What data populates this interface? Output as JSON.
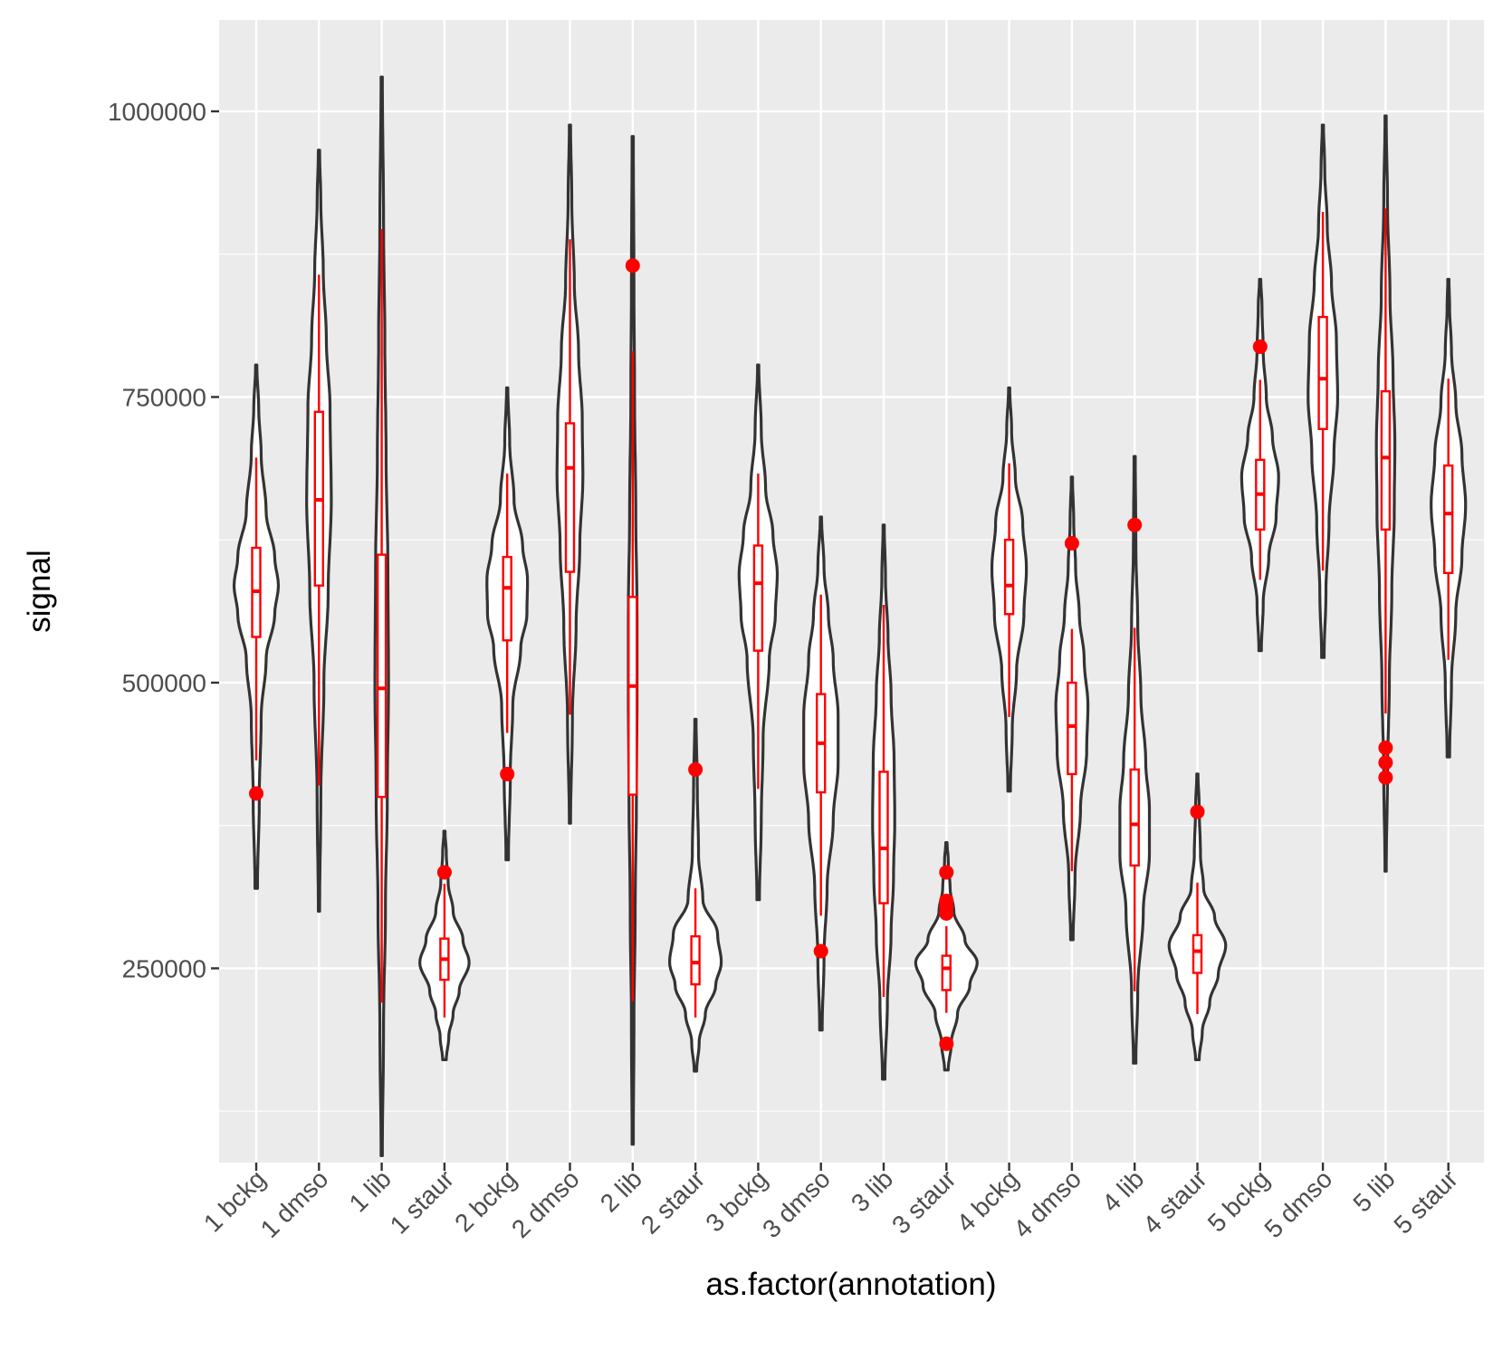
{
  "chart_data": {
    "type": "violin",
    "xlabel": "as.factor(annotation)",
    "ylabel": "signal",
    "ylim": [
      80000,
      1080000
    ],
    "yticks": [
      250000,
      500000,
      750000,
      1000000
    ],
    "ytick_labels": [
      "250000",
      "500000",
      "750000",
      "1000000"
    ],
    "grid": true,
    "legend": "none",
    "colors": {
      "panel_bg": "#ebebeb",
      "grid": "#ffffff",
      "violin_outline": "#333333",
      "violin_fill": "#ffffff",
      "box": "#ff0000",
      "outlier": "#ff0000"
    },
    "categories": [
      {
        "label": "1 bckg",
        "min": 320000,
        "max": 778000,
        "q1": 540000,
        "median": 580000,
        "q3": 618000,
        "wlo": 432000,
        "whi": 697000,
        "outliers": [
          403000
        ],
        "width_profile": [
          [
            320000,
            0.02
          ],
          [
            400000,
            0.05
          ],
          [
            470000,
            0.08
          ],
          [
            520000,
            0.16
          ],
          [
            560000,
            0.3
          ],
          [
            585000,
            0.36
          ],
          [
            610000,
            0.3
          ],
          [
            650000,
            0.16
          ],
          [
            700000,
            0.08
          ],
          [
            740000,
            0.04
          ],
          [
            778000,
            0.01
          ]
        ]
      },
      {
        "label": "1 dmso",
        "min": 300000,
        "max": 966000,
        "q1": 585000,
        "median": 660000,
        "q3": 737000,
        "wlo": 410000,
        "whi": 857000,
        "outliers": [],
        "width_profile": [
          [
            300000,
            0.01
          ],
          [
            400000,
            0.03
          ],
          [
            500000,
            0.08
          ],
          [
            580000,
            0.15
          ],
          [
            660000,
            0.2
          ],
          [
            740000,
            0.18
          ],
          [
            800000,
            0.12
          ],
          [
            860000,
            0.07
          ],
          [
            920000,
            0.03
          ],
          [
            966000,
            0.01
          ]
        ]
      },
      {
        "label": "1 lib",
        "min": 86000,
        "max": 1030000,
        "q1": 400000,
        "median": 495000,
        "q3": 612000,
        "wlo": 220000,
        "whi": 897000,
        "outliers": [],
        "width_profile": [
          [
            86000,
            0.01
          ],
          [
            200000,
            0.03
          ],
          [
            300000,
            0.06
          ],
          [
            400000,
            0.09
          ],
          [
            500000,
            0.11
          ],
          [
            600000,
            0.1
          ],
          [
            700000,
            0.07
          ],
          [
            800000,
            0.05
          ],
          [
            900000,
            0.03
          ],
          [
            1030000,
            0.01
          ]
        ]
      },
      {
        "label": "1 staur",
        "min": 170000,
        "max": 370000,
        "q1": 240000,
        "median": 258000,
        "q3": 276000,
        "wlo": 207000,
        "whi": 324000,
        "outliers": [
          334000
        ],
        "width_profile": [
          [
            170000,
            0.03
          ],
          [
            190000,
            0.07
          ],
          [
            210000,
            0.14
          ],
          [
            230000,
            0.24
          ],
          [
            255000,
            0.4
          ],
          [
            275000,
            0.3
          ],
          [
            300000,
            0.14
          ],
          [
            325000,
            0.06
          ],
          [
            350000,
            0.03
          ],
          [
            370000,
            0.01
          ]
        ]
      },
      {
        "label": "2 bckg",
        "min": 345000,
        "max": 758000,
        "q1": 537000,
        "median": 583000,
        "q3": 610000,
        "wlo": 456000,
        "whi": 683000,
        "outliers": [
          420000
        ],
        "width_profile": [
          [
            345000,
            0.02
          ],
          [
            420000,
            0.05
          ],
          [
            480000,
            0.09
          ],
          [
            530000,
            0.22
          ],
          [
            560000,
            0.32
          ],
          [
            590000,
            0.33
          ],
          [
            620000,
            0.25
          ],
          [
            660000,
            0.11
          ],
          [
            710000,
            0.04
          ],
          [
            758000,
            0.01
          ]
        ]
      },
      {
        "label": "2 dmso",
        "min": 377000,
        "max": 988000,
        "q1": 597000,
        "median": 688000,
        "q3": 727000,
        "wlo": 472000,
        "whi": 888000,
        "outliers": [],
        "width_profile": [
          [
            377000,
            0.01
          ],
          [
            470000,
            0.04
          ],
          [
            550000,
            0.1
          ],
          [
            620000,
            0.16
          ],
          [
            680000,
            0.21
          ],
          [
            730000,
            0.2
          ],
          [
            790000,
            0.14
          ],
          [
            850000,
            0.07
          ],
          [
            920000,
            0.03
          ],
          [
            988000,
            0.01
          ]
        ]
      },
      {
        "label": "2 lib",
        "min": 96000,
        "max": 978000,
        "q1": 402000,
        "median": 497000,
        "q3": 575000,
        "wlo": 221000,
        "whi": 790000,
        "outliers": [
          865000
        ],
        "width_profile": [
          [
            96000,
            0.01
          ],
          [
            200000,
            0.02
          ],
          [
            300000,
            0.04
          ],
          [
            400000,
            0.06
          ],
          [
            480000,
            0.07
          ],
          [
            560000,
            0.07
          ],
          [
            650000,
            0.05
          ],
          [
            750000,
            0.03
          ],
          [
            850000,
            0.02
          ],
          [
            978000,
            0.01
          ]
        ]
      },
      {
        "label": "2 staur",
        "min": 160000,
        "max": 468000,
        "q1": 236000,
        "median": 255000,
        "q3": 278000,
        "wlo": 207000,
        "whi": 320000,
        "outliers": [
          424000
        ],
        "width_profile": [
          [
            160000,
            0.02
          ],
          [
            185000,
            0.06
          ],
          [
            210000,
            0.16
          ],
          [
            235000,
            0.33
          ],
          [
            255000,
            0.42
          ],
          [
            280000,
            0.36
          ],
          [
            310000,
            0.12
          ],
          [
            350000,
            0.05
          ],
          [
            410000,
            0.03
          ],
          [
            468000,
            0.01
          ]
        ]
      },
      {
        "label": "3 bckg",
        "min": 310000,
        "max": 778000,
        "q1": 528000,
        "median": 587000,
        "q3": 620000,
        "wlo": 407000,
        "whi": 683000,
        "outliers": [],
        "width_profile": [
          [
            310000,
            0.02
          ],
          [
            380000,
            0.05
          ],
          [
            450000,
            0.08
          ],
          [
            520000,
            0.18
          ],
          [
            560000,
            0.28
          ],
          [
            595000,
            0.31
          ],
          [
            630000,
            0.24
          ],
          [
            670000,
            0.12
          ],
          [
            720000,
            0.05
          ],
          [
            778000,
            0.01
          ]
        ]
      },
      {
        "label": "3 dmso",
        "min": 196000,
        "max": 645000,
        "q1": 404000,
        "median": 447000,
        "q3": 490000,
        "wlo": 296000,
        "whi": 577000,
        "outliers": [
          265000
        ],
        "width_profile": [
          [
            196000,
            0.02
          ],
          [
            260000,
            0.05
          ],
          [
            320000,
            0.1
          ],
          [
            380000,
            0.2
          ],
          [
            430000,
            0.28
          ],
          [
            470000,
            0.28
          ],
          [
            520000,
            0.2
          ],
          [
            560000,
            0.12
          ],
          [
            600000,
            0.05
          ],
          [
            645000,
            0.01
          ]
        ]
      },
      {
        "label": "3 lib",
        "min": 153000,
        "max": 638000,
        "q1": 307000,
        "median": 355000,
        "q3": 422000,
        "wlo": 225000,
        "whi": 568000,
        "outliers": [],
        "width_profile": [
          [
            153000,
            0.02
          ],
          [
            220000,
            0.06
          ],
          [
            280000,
            0.12
          ],
          [
            330000,
            0.16
          ],
          [
            380000,
            0.18
          ],
          [
            430000,
            0.17
          ],
          [
            490000,
            0.12
          ],
          [
            540000,
            0.07
          ],
          [
            590000,
            0.03
          ],
          [
            638000,
            0.01
          ]
        ]
      },
      {
        "label": "3 staur",
        "min": 161000,
        "max": 360000,
        "q1": 231000,
        "median": 250000,
        "q3": 261000,
        "wlo": 211000,
        "whi": 287000,
        "outliers": [
          184000,
          298000,
          304000,
          309000,
          334000
        ],
        "width_profile": [
          [
            161000,
            0.03
          ],
          [
            185000,
            0.08
          ],
          [
            210000,
            0.18
          ],
          [
            235000,
            0.38
          ],
          [
            255000,
            0.5
          ],
          [
            275000,
            0.3
          ],
          [
            300000,
            0.12
          ],
          [
            320000,
            0.06
          ],
          [
            345000,
            0.03
          ],
          [
            360000,
            0.01
          ]
        ]
      },
      {
        "label": "4 bckg",
        "min": 405000,
        "max": 758000,
        "q1": 560000,
        "median": 585000,
        "q3": 625000,
        "wlo": 470000,
        "whi": 692000,
        "outliers": [],
        "width_profile": [
          [
            405000,
            0.02
          ],
          [
            460000,
            0.05
          ],
          [
            510000,
            0.12
          ],
          [
            560000,
            0.24
          ],
          [
            600000,
            0.28
          ],
          [
            640000,
            0.22
          ],
          [
            680000,
            0.1
          ],
          [
            720000,
            0.04
          ],
          [
            758000,
            0.01
          ]
        ]
      },
      {
        "label": "4 dmso",
        "min": 275000,
        "max": 680000,
        "q1": 420000,
        "median": 462000,
        "q3": 500000,
        "wlo": 335000,
        "whi": 547000,
        "outliers": [
          622000
        ],
        "width_profile": [
          [
            275000,
            0.02
          ],
          [
            330000,
            0.05
          ],
          [
            390000,
            0.14
          ],
          [
            440000,
            0.24
          ],
          [
            480000,
            0.26
          ],
          [
            520000,
            0.2
          ],
          [
            560000,
            0.12
          ],
          [
            600000,
            0.06
          ],
          [
            640000,
            0.03
          ],
          [
            680000,
            0.01
          ]
        ]
      },
      {
        "label": "4 lib",
        "min": 167000,
        "max": 698000,
        "q1": 340000,
        "median": 376000,
        "q3": 424000,
        "wlo": 230000,
        "whi": 548000,
        "outliers": [
          638000
        ],
        "width_profile": [
          [
            167000,
            0.02
          ],
          [
            230000,
            0.05
          ],
          [
            300000,
            0.14
          ],
          [
            350000,
            0.24
          ],
          [
            390000,
            0.24
          ],
          [
            430000,
            0.18
          ],
          [
            490000,
            0.1
          ],
          [
            550000,
            0.05
          ],
          [
            620000,
            0.02
          ],
          [
            698000,
            0.01
          ]
        ]
      },
      {
        "label": "4 staur",
        "min": 170000,
        "max": 420000,
        "q1": 246000,
        "median": 265000,
        "q3": 279000,
        "wlo": 210000,
        "whi": 325000,
        "outliers": [
          387000
        ],
        "width_profile": [
          [
            170000,
            0.03
          ],
          [
            195000,
            0.08
          ],
          [
            220000,
            0.2
          ],
          [
            245000,
            0.34
          ],
          [
            270000,
            0.46
          ],
          [
            295000,
            0.28
          ],
          [
            320000,
            0.1
          ],
          [
            350000,
            0.05
          ],
          [
            390000,
            0.03
          ],
          [
            420000,
            0.01
          ]
        ]
      },
      {
        "label": "5 bckg",
        "min": 528000,
        "max": 853000,
        "q1": 634000,
        "median": 665000,
        "q3": 695000,
        "wlo": 590000,
        "whi": 765000,
        "outliers": [
          794000
        ],
        "width_profile": [
          [
            528000,
            0.02
          ],
          [
            570000,
            0.05
          ],
          [
            610000,
            0.14
          ],
          [
            645000,
            0.26
          ],
          [
            680000,
            0.3
          ],
          [
            715000,
            0.2
          ],
          [
            750000,
            0.1
          ],
          [
            790000,
            0.05
          ],
          [
            830000,
            0.03
          ],
          [
            853000,
            0.01
          ]
        ]
      },
      {
        "label": "5 dmso",
        "min": 522000,
        "max": 988000,
        "q1": 722000,
        "median": 766000,
        "q3": 820000,
        "wlo": 598000,
        "whi": 912000,
        "outliers": [],
        "width_profile": [
          [
            522000,
            0.02
          ],
          [
            580000,
            0.05
          ],
          [
            640000,
            0.1
          ],
          [
            700000,
            0.18
          ],
          [
            750000,
            0.24
          ],
          [
            800000,
            0.22
          ],
          [
            850000,
            0.14
          ],
          [
            900000,
            0.07
          ],
          [
            950000,
            0.03
          ],
          [
            988000,
            0.01
          ]
        ]
      },
      {
        "label": "5 lib",
        "min": 335000,
        "max": 996000,
        "q1": 634000,
        "median": 697000,
        "q3": 755000,
        "wlo": 473000,
        "whi": 915000,
        "outliers": [
          417000,
          430000,
          443000
        ],
        "width_profile": [
          [
            335000,
            0.01
          ],
          [
            420000,
            0.03
          ],
          [
            500000,
            0.06
          ],
          [
            580000,
            0.1
          ],
          [
            650000,
            0.14
          ],
          [
            710000,
            0.15
          ],
          [
            770000,
            0.12
          ],
          [
            840000,
            0.07
          ],
          [
            920000,
            0.03
          ],
          [
            996000,
            0.01
          ]
        ]
      },
      {
        "label": "5 staur",
        "min": 435000,
        "max": 853000,
        "q1": 596000,
        "median": 648000,
        "q3": 690000,
        "wlo": 520000,
        "whi": 766000,
        "outliers": [],
        "width_profile": [
          [
            435000,
            0.02
          ],
          [
            500000,
            0.05
          ],
          [
            560000,
            0.12
          ],
          [
            610000,
            0.22
          ],
          [
            655000,
            0.28
          ],
          [
            700000,
            0.22
          ],
          [
            745000,
            0.12
          ],
          [
            790000,
            0.05
          ],
          [
            830000,
            0.02
          ],
          [
            853000,
            0.01
          ]
        ]
      }
    ]
  }
}
